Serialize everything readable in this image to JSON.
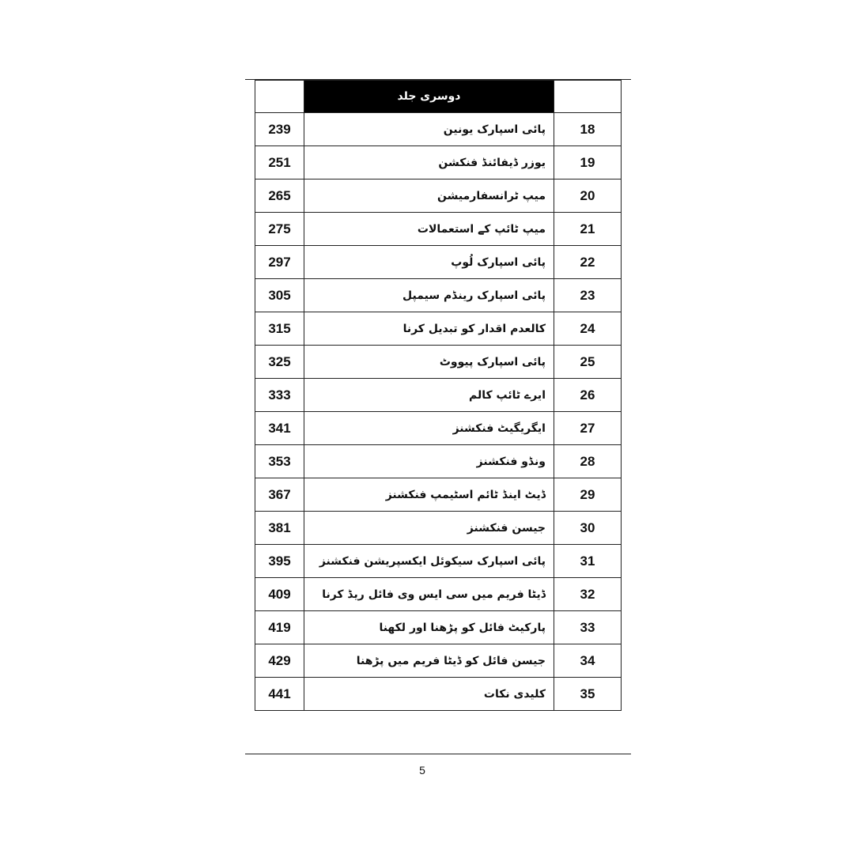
{
  "header": {
    "volume_title": "دوسری جلد"
  },
  "rows": [
    {
      "num": "18",
      "title": "پائی اسپارک یونین",
      "page": "239"
    },
    {
      "num": "19",
      "title": "یوزر ڈیفائنڈ فنکشن",
      "page": "251"
    },
    {
      "num": "20",
      "title": "میپ ٹرانسفارمیشن",
      "page": "265"
    },
    {
      "num": "21",
      "title": "میپ ٹائپ کے استعمالات",
      "page": "275"
    },
    {
      "num": "22",
      "title": "پائی اسپارک لُوپ",
      "page": "297"
    },
    {
      "num": "23",
      "title": "پائی اسپارک رینڈم سیمپل",
      "page": "305"
    },
    {
      "num": "24",
      "title": "کالعدم اقدار کو تبدیل کرنا",
      "page": "315"
    },
    {
      "num": "25",
      "title": "پائی اسپارک پیووٹ",
      "page": "325"
    },
    {
      "num": "26",
      "title": "ایرے ٹائپ کالم",
      "page": "333"
    },
    {
      "num": "27",
      "title": "ایگریگیٹ فنکشنز",
      "page": "341"
    },
    {
      "num": "28",
      "title": "ونڈو فنکشنز",
      "page": "353"
    },
    {
      "num": "29",
      "title": "ڈیٹ اینڈ ٹائم اسٹیمپ فنکشنز",
      "page": "367"
    },
    {
      "num": "30",
      "title": "جیسن فنکشنز",
      "page": "381"
    },
    {
      "num": "31",
      "title": "پائی اسپارک سیکوئل ایکسپریشن فنکشنز",
      "page": "395"
    },
    {
      "num": "32",
      "title": "ڈیٹا فریم میں سی ایس وی فائل ریڈ کرنا",
      "page": "409"
    },
    {
      "num": "33",
      "title": "پارکیٹ فائل کو پڑھنا اور لکھنا",
      "page": "419"
    },
    {
      "num": "34",
      "title": "جیسن فائل کو ڈیٹا فریم میں پڑھنا",
      "page": "429"
    },
    {
      "num": "35",
      "title": "کلیدی نکات",
      "page": "441"
    }
  ],
  "footer": {
    "page_number": "5"
  }
}
